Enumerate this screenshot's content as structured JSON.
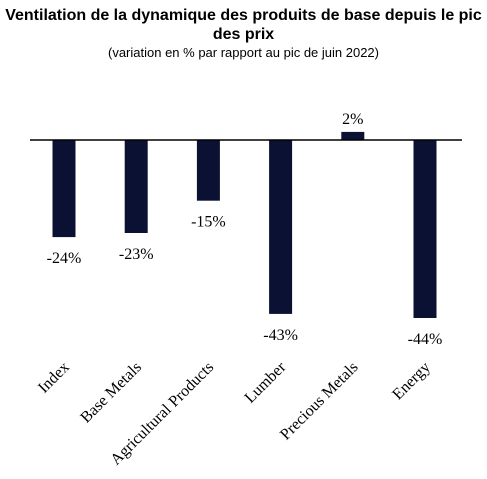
{
  "chart_data": {
    "type": "bar",
    "title_lines": [
      "Ventilation de la dynamique des produits de base depuis le pic",
      "des prix"
    ],
    "subtitle": "(variation en % par rapport au pic de juin 2022)",
    "categories": [
      "Index",
      "Base Metals",
      "Agricultural Products",
      "Lumber",
      "Precious Metals",
      "Energy"
    ],
    "values": [
      -24,
      -23,
      -15,
      -43,
      2,
      -44
    ],
    "data_labels": [
      "-24%",
      "-23%",
      "-15%",
      "-43%",
      "2%",
      "-44%"
    ],
    "xlabel": "",
    "ylabel": "",
    "ylim": [
      -44,
      2
    ],
    "grid": false,
    "legend": "none",
    "bar_color": "#0b1133",
    "axis_color": "#000000"
  }
}
